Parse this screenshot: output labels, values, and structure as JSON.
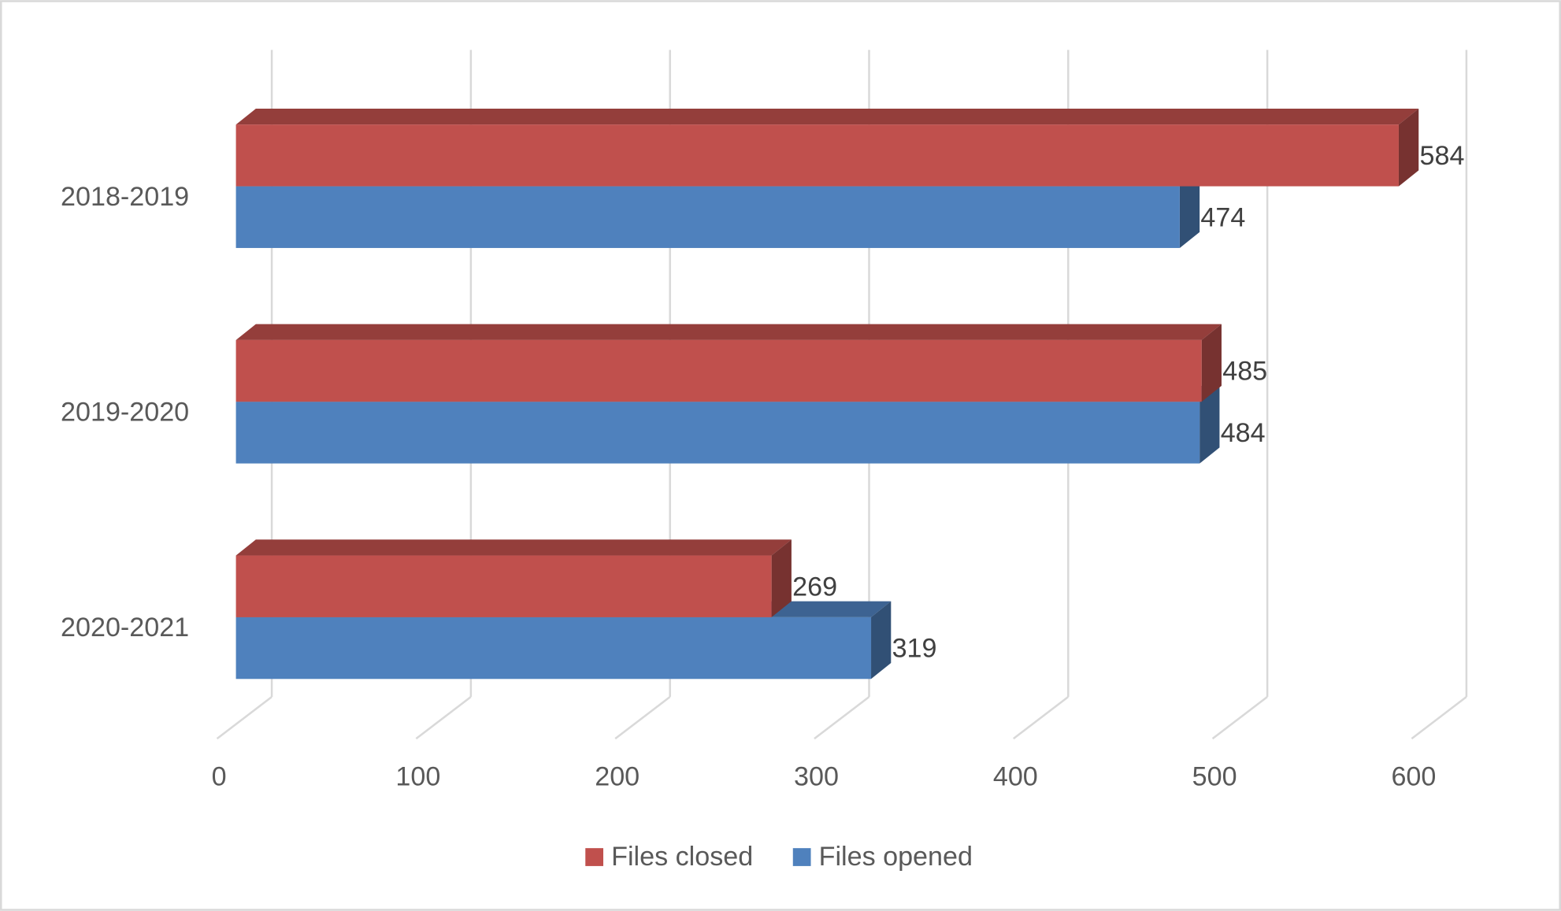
{
  "chart_data": {
    "type": "bar3d",
    "orientation": "horizontal",
    "categories": [
      "2018-2019",
      "2019-2020",
      "2020-2021"
    ],
    "series": [
      {
        "name": "Files closed",
        "color": "#c0504d",
        "values": [
          584,
          485,
          269
        ]
      },
      {
        "name": "Files opened",
        "color": "#4f81bd",
        "values": [
          474,
          484,
          319
        ]
      }
    ],
    "xlim": [
      0,
      600
    ],
    "xticks": [
      0,
      100,
      200,
      300,
      400,
      500,
      600
    ],
    "grid": true,
    "legend": "bottom"
  }
}
